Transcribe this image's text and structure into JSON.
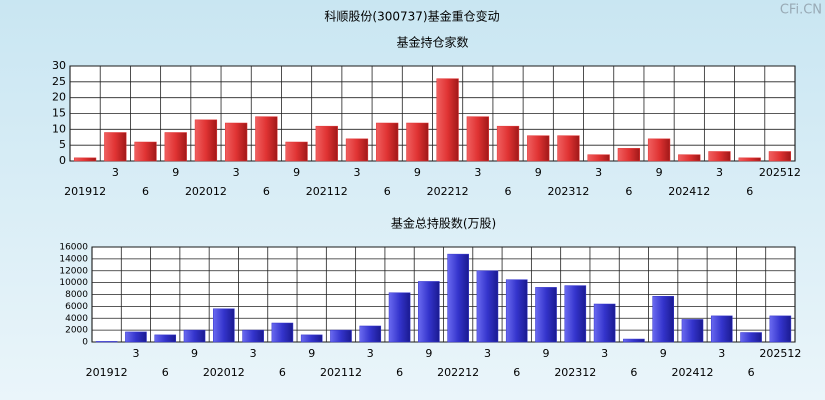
{
  "title": "科顺股份(300737)基金重仓变动",
  "watermark": "CFi.CN",
  "chart_data": [
    {
      "type": "bar",
      "title": "基金持仓家数",
      "categories": [
        "201912",
        "3",
        "6",
        "9",
        "202012",
        "3",
        "6",
        "9",
        "202112",
        "3",
        "6",
        "9",
        "202212",
        "3",
        "6",
        "9",
        "202312",
        "3",
        "6",
        "9",
        "202412",
        "3",
        "6",
        "202512"
      ],
      "values": [
        1,
        9,
        6,
        9,
        13,
        12,
        14,
        6,
        11,
        7,
        12,
        12,
        26,
        14,
        11,
        8,
        8,
        2,
        4,
        7,
        2,
        3,
        1,
        3
      ],
      "color": "#e03333",
      "ylim": [
        0,
        30
      ],
      "yticks": [
        0,
        5,
        10,
        15,
        20,
        25,
        30
      ],
      "grid": true
    },
    {
      "type": "bar",
      "title": "基金总持股数(万股)",
      "categories": [
        "201912",
        "3",
        "6",
        "9",
        "202012",
        "3",
        "6",
        "9",
        "202112",
        "3",
        "6",
        "9",
        "202212",
        "3",
        "6",
        "9",
        "202312",
        "3",
        "6",
        "9",
        "202412",
        "3",
        "6",
        "202512"
      ],
      "values": [
        100,
        1700,
        1200,
        2000,
        5600,
        2000,
        3200,
        1200,
        2000,
        2700,
        8300,
        10200,
        14800,
        12000,
        10500,
        9200,
        9500,
        6400,
        500,
        7700,
        3800,
        4400,
        1600,
        4400
      ],
      "color": "#3434cc",
      "ylim": [
        0,
        16000
      ],
      "yticks": [
        0,
        2000,
        4000,
        6000,
        8000,
        10000,
        12000,
        14000,
        16000
      ],
      "grid": true
    }
  ]
}
